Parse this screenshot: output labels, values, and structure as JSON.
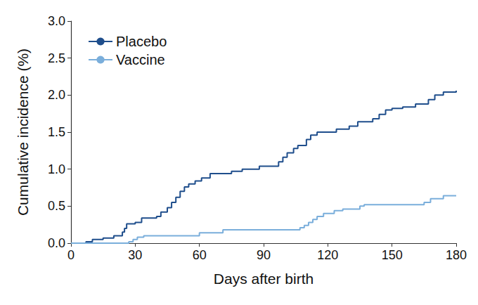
{
  "chart_data": {
    "type": "step",
    "xlabel": "Days after birth",
    "ylabel": "Cumulative incidence (%)",
    "xlim": [
      0,
      180
    ],
    "xticks": [
      0,
      30,
      60,
      90,
      120,
      150,
      180
    ],
    "ylim": [
      0,
      3
    ],
    "yticks": [
      {
        "value": 0,
        "label": "0.0"
      },
      0.5,
      {
        "value": 1,
        "label": "1.0"
      },
      1.5,
      {
        "value": 2,
        "label": "2.0"
      },
      2.5,
      {
        "value": 3,
        "label": "3.0"
      }
    ],
    "grid": false,
    "legend": "top-left",
    "series": [
      {
        "name": "Placebo",
        "color": "#1f4e8c",
        "x": [
          0,
          7,
          10,
          15,
          20,
          24,
          25,
          26,
          30,
          33,
          40,
          42,
          45,
          47,
          49,
          51,
          53,
          55,
          58,
          61,
          65,
          75,
          80,
          88,
          97,
          99,
          101,
          104,
          106,
          110,
          112,
          115,
          124,
          130,
          134,
          141,
          144,
          147,
          150,
          155,
          161,
          167,
          170,
          174,
          180
        ],
        "values": [
          0,
          0.02,
          0.05,
          0.07,
          0.1,
          0.15,
          0.2,
          0.26,
          0.28,
          0.34,
          0.36,
          0.42,
          0.48,
          0.55,
          0.62,
          0.7,
          0.76,
          0.8,
          0.84,
          0.88,
          0.94,
          0.97,
          1.0,
          1.04,
          1.1,
          1.16,
          1.22,
          1.28,
          1.32,
          1.4,
          1.46,
          1.5,
          1.54,
          1.58,
          1.64,
          1.68,
          1.74,
          1.8,
          1.82,
          1.84,
          1.88,
          1.94,
          2.0,
          2.04,
          2.06
        ]
      },
      {
        "name": "Vaccine",
        "color": "#7aaedb",
        "x": [
          0,
          27,
          29,
          31,
          34,
          60,
          71,
          107,
          109,
          111,
          113,
          115,
          118,
          123,
          127,
          135,
          137,
          165,
          168,
          174,
          180
        ],
        "values": [
          0,
          0.02,
          0.05,
          0.08,
          0.1,
          0.14,
          0.18,
          0.21,
          0.24,
          0.28,
          0.32,
          0.36,
          0.4,
          0.44,
          0.46,
          0.5,
          0.52,
          0.55,
          0.6,
          0.64,
          0.64
        ]
      }
    ]
  }
}
